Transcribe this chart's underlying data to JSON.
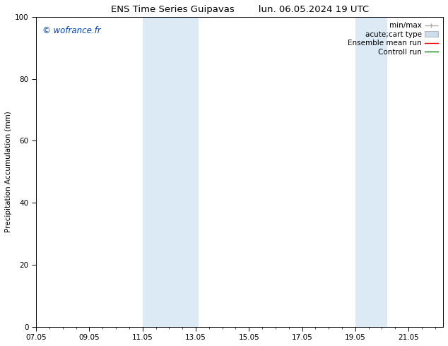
{
  "title_left": "ENS Time Series Guipavas",
  "title_right": "lun. 06.05.2024 19 UTC",
  "ylabel": "Precipitation Accumulation (mm)",
  "ylim": [
    0,
    100
  ],
  "yticks": [
    0,
    20,
    40,
    60,
    80,
    100
  ],
  "xticks_labels": [
    "07.05",
    "09.05",
    "11.05",
    "13.05",
    "15.05",
    "17.05",
    "19.05",
    "21.05"
  ],
  "xticks_pos": [
    7.0,
    9.0,
    11.0,
    13.0,
    15.0,
    17.0,
    19.0,
    21.0
  ],
  "xmin": 7.0,
  "xmax": 22.3,
  "shaded_bands": [
    {
      "x_start": 11.0,
      "x_end": 13.1
    },
    {
      "x_start": 19.0,
      "x_end": 20.2
    }
  ],
  "band_color": "#dbeaf5",
  "watermark_text": "© wofrance.fr",
  "watermark_color": "#0044bb",
  "legend_entries": [
    {
      "label": "min/max",
      "color": "#aaaaaa",
      "lw": 1.0,
      "style": "line_with_caps"
    },
    {
      "label": "acute;cart type",
      "color": "#ccdded",
      "lw": 8,
      "style": "thick"
    },
    {
      "label": "Ensemble mean run",
      "color": "red",
      "lw": 1.0,
      "style": "line"
    },
    {
      "label": "Controll run",
      "color": "green",
      "lw": 1.0,
      "style": "line"
    }
  ],
  "background_color": "#ffffff",
  "font_size": 7.5,
  "title_font_size": 9.5,
  "watermark_font_size": 8.5
}
